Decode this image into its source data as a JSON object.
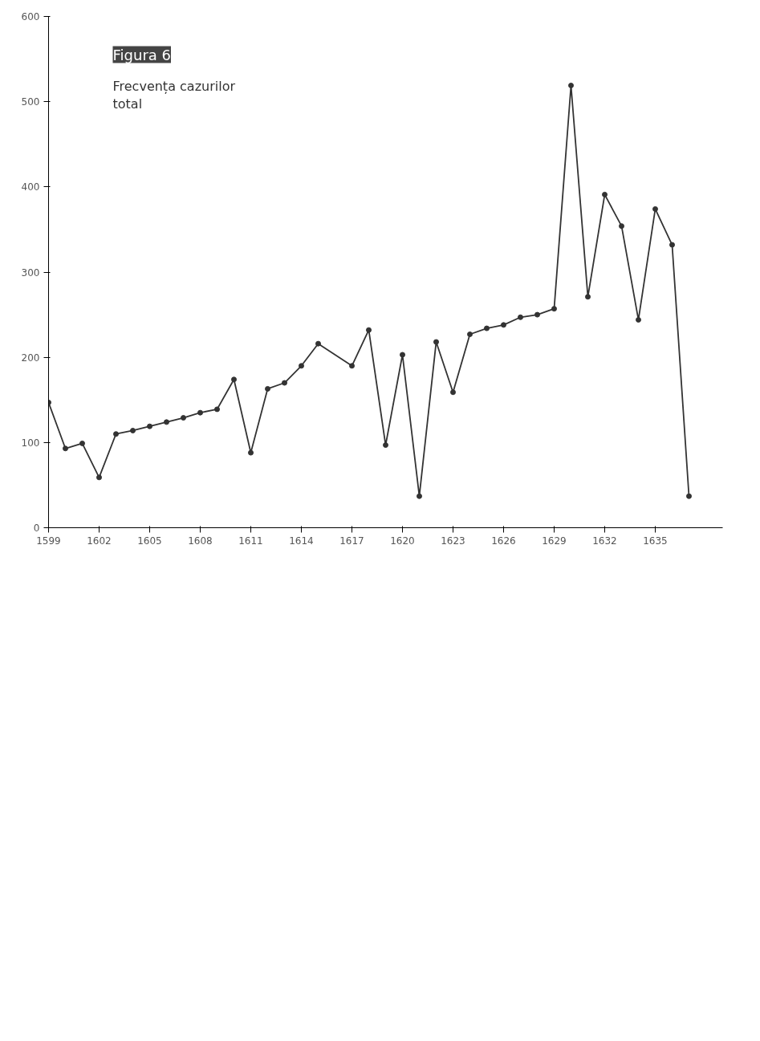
{
  "chart_data": {
    "type": "line",
    "title": "Figura 6",
    "subtitle": "Frecvența cazurilor\ntotal",
    "x": [
      1599,
      1600,
      1601,
      1602,
      1603,
      1604,
      1605,
      1606,
      1607,
      1608,
      1609,
      1610,
      1611,
      1612,
      1613,
      1614,
      1615,
      1617,
      1618,
      1619,
      1620,
      1621,
      1622,
      1623,
      1624,
      1625,
      1626,
      1627,
      1628,
      1629,
      1630,
      1631,
      1632,
      1633,
      1634,
      1635,
      1636,
      1637
    ],
    "series": [
      {
        "color": "#333333",
        "values": [
          147,
          93,
          99,
          59,
          110,
          114,
          119,
          124,
          129,
          135,
          139,
          174,
          88,
          163,
          170,
          190,
          216,
          190,
          232,
          97,
          203,
          37,
          218,
          159,
          227,
          234,
          238,
          247,
          250,
          257,
          519,
          271,
          391,
          354,
          244,
          374,
          332,
          37
        ]
      }
    ],
    "xlim": [
      1599,
      1639
    ],
    "xticks": [
      1599,
      1602,
      1605,
      1608,
      1611,
      1614,
      1617,
      1620,
      1623,
      1626,
      1629,
      1632,
      1635
    ],
    "ylim": [
      0,
      600
    ],
    "yticks": [
      0,
      100,
      200,
      300,
      400,
      500,
      600
    ],
    "marker": "circle",
    "line_style": "solid",
    "grid": false
  }
}
